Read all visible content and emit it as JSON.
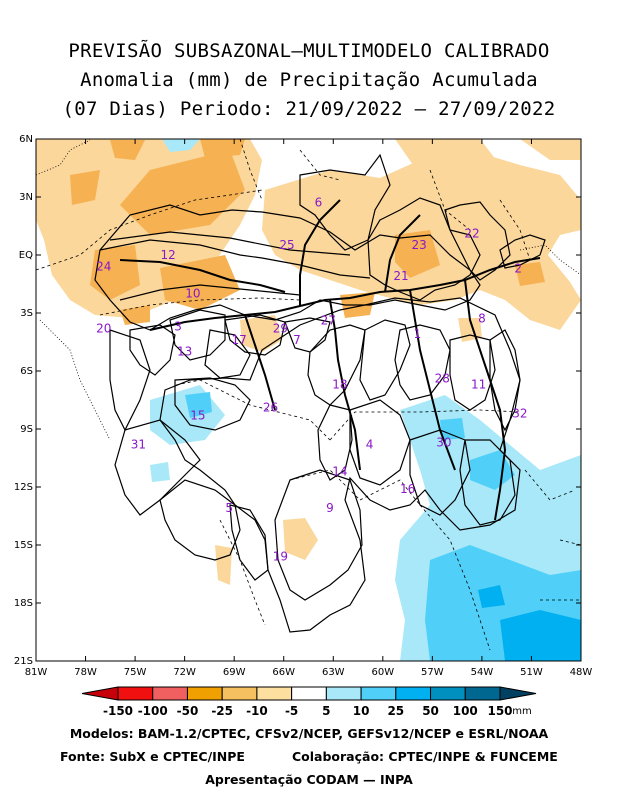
{
  "title": {
    "line1": "PREVISÃO SUBSAZONAL—MULTIMODELO CALIBRADO",
    "line2": "Anomalia (mm) de Precipitação Acumulada",
    "line3": "(07 Dias) Periodo: 21/09/2022 — 27/09/2022"
  },
  "axes": {
    "lat_labels": [
      "6N",
      "3N",
      "EQ",
      "3S",
      "6S",
      "9S",
      "12S",
      "15S",
      "18S",
      "21S"
    ],
    "lon_labels": [
      "81W",
      "78W",
      "75W",
      "72W",
      "69W",
      "66W",
      "63W",
      "60W",
      "57W",
      "54W",
      "51W",
      "48W"
    ],
    "lat_range": [
      6,
      -21
    ],
    "lon_range": [
      -81,
      -48
    ]
  },
  "basins": [
    {
      "id": "1",
      "lon": -57.9,
      "lat": -4.3
    },
    {
      "id": "2",
      "lon": -51.8,
      "lat": -0.9
    },
    {
      "id": "3",
      "lon": -72.4,
      "lat": -3.9
    },
    {
      "id": "4",
      "lon": -60.8,
      "lat": -10.0
    },
    {
      "id": "5",
      "lon": -69.3,
      "lat": -13.3
    },
    {
      "id": "6",
      "lon": -63.9,
      "lat": 2.5
    },
    {
      "id": "7",
      "lon": -65.2,
      "lat": -4.6
    },
    {
      "id": "8",
      "lon": -54.0,
      "lat": -3.5
    },
    {
      "id": "9",
      "lon": -63.2,
      "lat": -13.3
    },
    {
      "id": "10",
      "lon": -71.5,
      "lat": -2.2
    },
    {
      "id": "11",
      "lon": -54.2,
      "lat": -6.9
    },
    {
      "id": "12",
      "lon": -73.0,
      "lat": -0.2
    },
    {
      "id": "13",
      "lon": -72.0,
      "lat": -5.2
    },
    {
      "id": "14",
      "lon": -62.6,
      "lat": -11.4
    },
    {
      "id": "15",
      "lon": -71.2,
      "lat": -8.5
    },
    {
      "id": "16",
      "lon": -58.5,
      "lat": -12.3
    },
    {
      "id": "17",
      "lon": -68.7,
      "lat": -4.6
    },
    {
      "id": "18",
      "lon": -62.6,
      "lat": -6.9
    },
    {
      "id": "19",
      "lon": -66.2,
      "lat": -15.8
    },
    {
      "id": "20",
      "lon": -76.9,
      "lat": -4.0
    },
    {
      "id": "21",
      "lon": -58.9,
      "lat": -1.3
    },
    {
      "id": "22",
      "lon": -54.6,
      "lat": 0.9
    },
    {
      "id": "23",
      "lon": -57.8,
      "lat": 0.3
    },
    {
      "id": "24",
      "lon": -76.9,
      "lat": -0.8
    },
    {
      "id": "25",
      "lon": -65.8,
      "lat": 0.3
    },
    {
      "id": "26",
      "lon": -66.8,
      "lat": -8.1
    },
    {
      "id": "27",
      "lon": -63.3,
      "lat": -3.6
    },
    {
      "id": "28",
      "lon": -56.4,
      "lat": -6.6
    },
    {
      "id": "29",
      "lon": -66.2,
      "lat": -4.0
    },
    {
      "id": "30",
      "lon": -56.3,
      "lat": -9.9
    },
    {
      "id": "31",
      "lon": -74.8,
      "lat": -10.0
    },
    {
      "id": "32",
      "lon": -51.7,
      "lat": -8.4
    }
  ],
  "colorbar": {
    "labels": [
      "-150",
      "-100",
      "-50",
      "-25",
      "-10",
      "-5",
      "5",
      "10",
      "25",
      "50",
      "100",
      "150"
    ],
    "unit": "mm",
    "colors": [
      "#c8000a",
      "#f01010",
      "#f06060",
      "#f0a000",
      "#f5c060",
      "#fde0a0",
      "#ffffff",
      "#a8e8f8",
      "#50d0f8",
      "#00b0f0",
      "#0090c0",
      "#006890",
      "#004060"
    ]
  },
  "footer": {
    "line1": "Modelos: BAM-1.2/CPTEC, CFSv2/NCEP, GEFSv12/NCEP e ESRL/NOAA",
    "line2_left": "Fonte: SubX e CPTEC/INPE",
    "line2_right": "Colaboração: CPTEC/INPE & FUNCEME",
    "line3": "Apresentação CODAM — INPA"
  }
}
